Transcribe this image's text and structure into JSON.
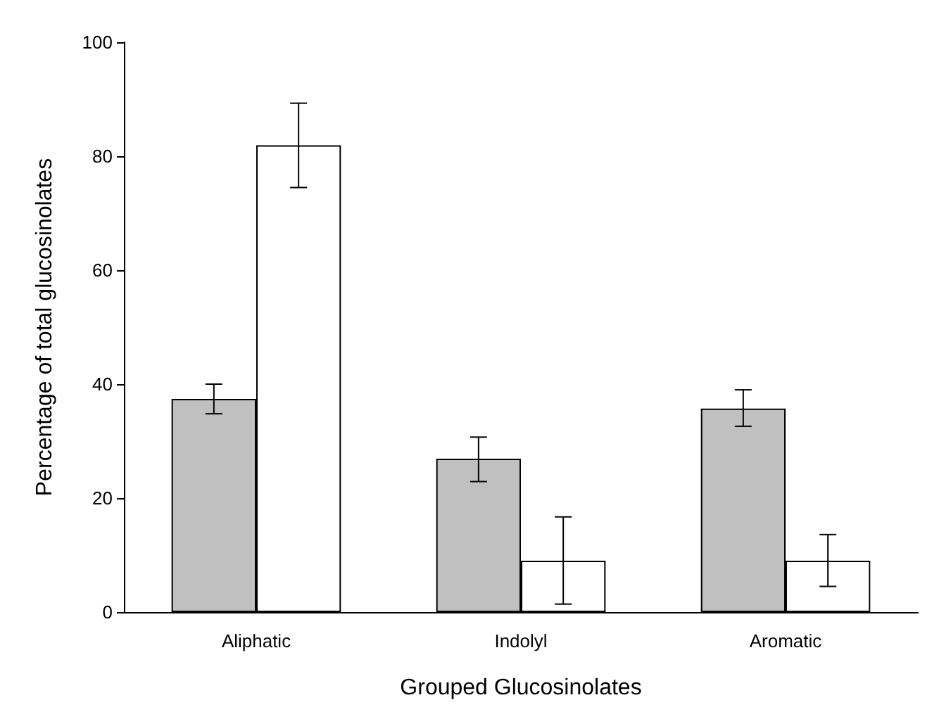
{
  "chart_data": {
    "type": "bar",
    "xlabel": "Grouped Glucosinolates",
    "ylabel": "Percentage of total glucosinolates",
    "categories": [
      "Aliphatic",
      "Indolyl",
      "Aromatic"
    ],
    "series": [
      {
        "color": "#c0c0c0",
        "values": [
          37.4,
          26.9,
          35.7
        ],
        "errors": [
          [
            34.8,
            40
          ],
          [
            22.9,
            30.7
          ],
          [
            32.6,
            39
          ]
        ]
      },
      {
        "color": "#ffffff",
        "values": [
          81.9,
          9,
          9
        ],
        "errors": [
          [
            74.5,
            89.3
          ],
          [
            1.4,
            16.7
          ],
          [
            4.5,
            13.6
          ]
        ]
      }
    ],
    "ylim": [
      0,
      100
    ],
    "yticks": [
      0,
      20,
      40,
      60,
      80,
      100
    ],
    "grid": false
  }
}
